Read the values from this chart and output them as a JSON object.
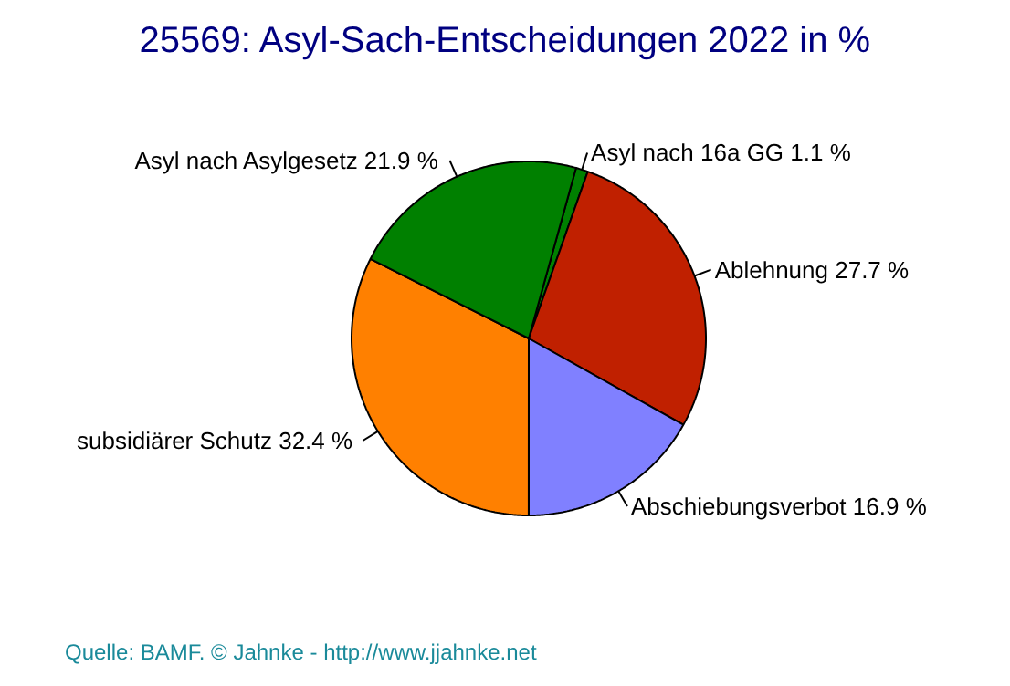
{
  "chart_data": {
    "type": "pie",
    "title": "25569: Asyl-Sach-Entscheidungen 2022 in %",
    "categories": [
      "Asyl nach 16a GG",
      "Ablehnung",
      "Abschiebungsverbot",
      "subsidiärer Schutz",
      "Asyl nach Asylgesetz"
    ],
    "values": [
      1.1,
      27.7,
      16.9,
      32.4,
      21.9
    ],
    "value_labels": [
      "1.1 %",
      "27.7 %",
      "16.9 %",
      "32.4 %",
      "21.9 %"
    ],
    "colors": [
      "#008000",
      "#c02000",
      "#8080ff",
      "#ff8000",
      "#008000"
    ],
    "annotations": [
      "Quelle: BAMF. © Jahnke - http://www.jjahnke.net"
    ]
  }
}
